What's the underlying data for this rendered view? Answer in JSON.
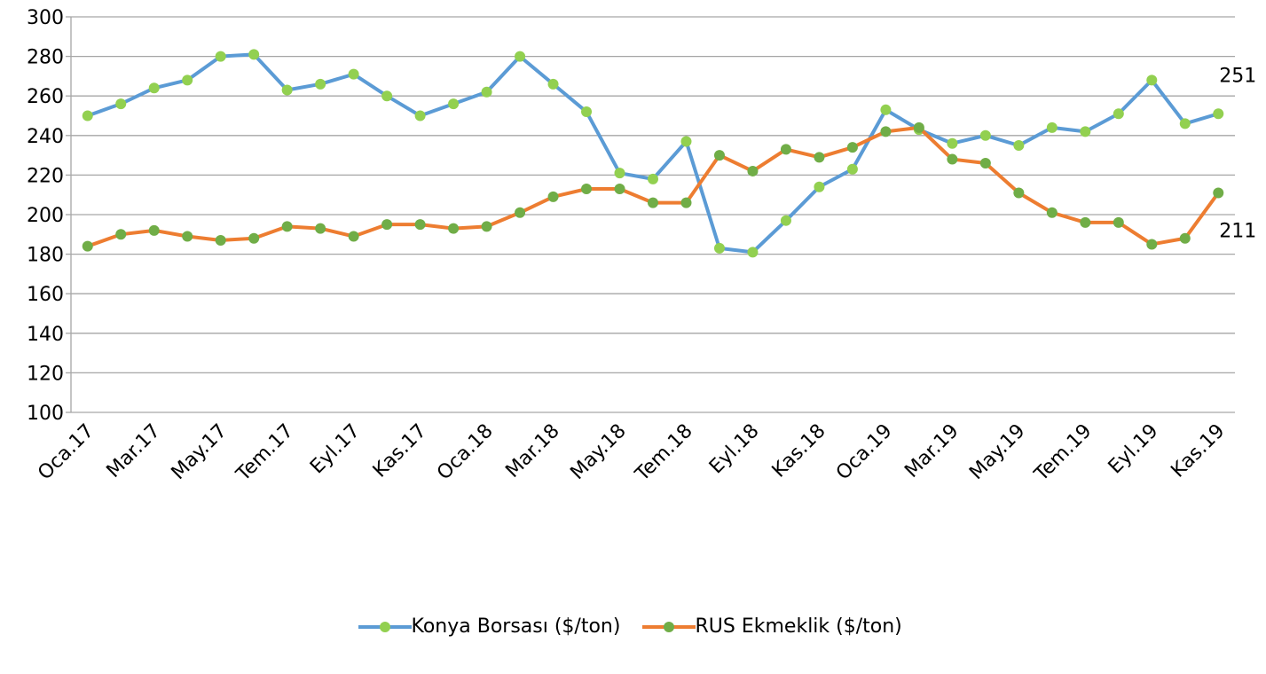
{
  "chart_data": {
    "type": "line",
    "categories": [
      "Oca.17",
      null,
      "Mar.17",
      null,
      "May.17",
      null,
      "Tem.17",
      null,
      "Eyl.17",
      null,
      "Kas.17",
      null,
      "Oca.18",
      null,
      "Mar.18",
      null,
      "May.18",
      null,
      "Tem.18",
      null,
      "Eyl.18",
      null,
      "Kas.18",
      null,
      "Oca.19",
      null,
      "Mar.19",
      null,
      "May.19",
      null,
      "Tem.19",
      null,
      "Eyl.19",
      null,
      "Kas.19"
    ],
    "series": [
      {
        "name": "Konya Borsası ($/ton)",
        "color": "#5b9bd5",
        "marker_color": "#92d050",
        "values": [
          250,
          256,
          264,
          268,
          280,
          281,
          263,
          266,
          271,
          260,
          250,
          256,
          262,
          280,
          266,
          252,
          221,
          218,
          237,
          183,
          181,
          197,
          214,
          223,
          253,
          243,
          236,
          240,
          235,
          244,
          242,
          251,
          268,
          246,
          251
        ]
      },
      {
        "name": "RUS Ekmeklik ($/ton)",
        "color": "#ed7d31",
        "marker_color": "#70ad47",
        "values": [
          184,
          190,
          192,
          189,
          187,
          188,
          194,
          193,
          189,
          195,
          195,
          193,
          194,
          201,
          209,
          213,
          213,
          206,
          206,
          230,
          222,
          233,
          229,
          234,
          242,
          244,
          228,
          226,
          211,
          201,
          196,
          196,
          185,
          188,
          211
        ]
      }
    ],
    "ylim": [
      100,
      300
    ],
    "yticks": [
      100,
      120,
      140,
      160,
      180,
      200,
      220,
      240,
      260,
      280,
      300
    ],
    "grid": true
  }
}
